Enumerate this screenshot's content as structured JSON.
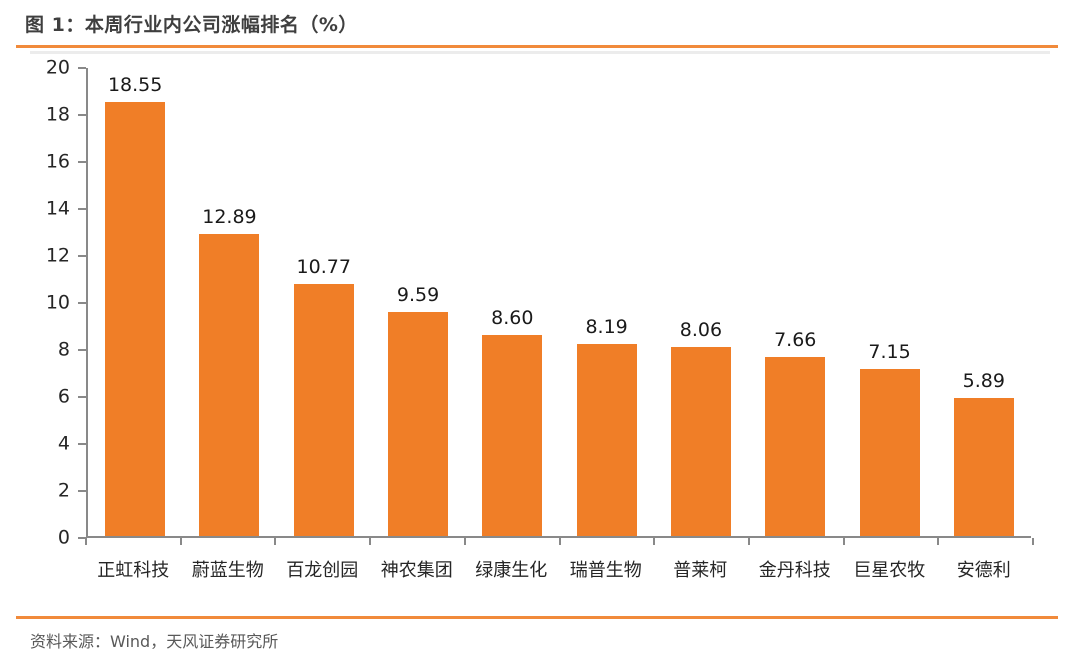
{
  "header": {
    "title": "图 1：本周行业内公司涨幅排名（%）"
  },
  "footer": {
    "source": "资料来源：Wind，天风证券研究所"
  },
  "colors": {
    "bar": "#F07E27",
    "rule_orange": "#F18A3B",
    "axis": "#898989",
    "title_text": "#3F3F3F",
    "tick_text": "#262626",
    "value_text": "#1A1A1A",
    "source_text": "#595959"
  },
  "chart_data": {
    "type": "bar",
    "title": "本周行业内公司涨幅排名（%）",
    "categories": [
      "正虹科技",
      "蔚蓝生物",
      "百龙创园",
      "神农集团",
      "绿康生化",
      "瑞普生物",
      "普莱柯",
      "金丹科技",
      "巨星农牧",
      "安德利"
    ],
    "values": [
      18.55,
      12.89,
      10.77,
      9.59,
      8.6,
      8.19,
      8.06,
      7.66,
      7.15,
      5.89
    ],
    "value_label_decimals": 2,
    "xlabel": "",
    "ylabel": "",
    "ylim": [
      0,
      20
    ],
    "yticks": [
      0,
      2,
      4,
      6,
      8,
      10,
      12,
      14,
      16,
      18,
      20
    ],
    "grid": false,
    "legend": false,
    "bar_color": "#F07E27",
    "value_labels": true
  }
}
